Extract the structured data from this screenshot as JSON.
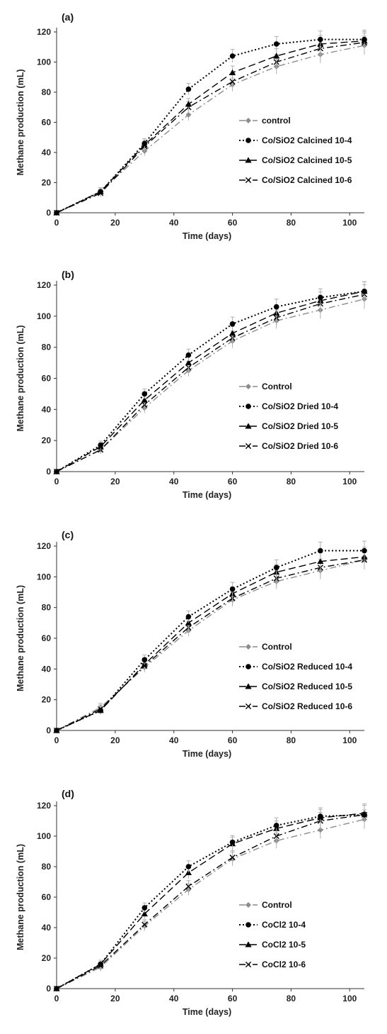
{
  "chart_data": [
    {
      "type": "line",
      "panel_label": "(a)",
      "xlabel": "Time (days)",
      "ylabel": "Methane production (mL)",
      "xlim": [
        0,
        105
      ],
      "ylim": [
        0,
        120
      ],
      "xticks": [
        0,
        20,
        40,
        60,
        80,
        100
      ],
      "yticks": [
        0,
        20,
        40,
        60,
        80,
        100,
        120
      ],
      "x": [
        0,
        15,
        30,
        45,
        60,
        75,
        90,
        105
      ],
      "series": [
        {
          "name": "control",
          "values": [
            0,
            14,
            41,
            65,
            85,
            97,
            105,
            111
          ]
        },
        {
          "name": "Co/SiO2 Calcined  10-4",
          "values": [
            0,
            14,
            46,
            82,
            104,
            112,
            115,
            115
          ]
        },
        {
          "name": "Co/SiO2 Calcined  10-5",
          "values": [
            0,
            14,
            45,
            72,
            93,
            104,
            112,
            114
          ]
        },
        {
          "name": "Co/SiO2 Calcined  10-6",
          "values": [
            0,
            13,
            44,
            70,
            87,
            100,
            109,
            113
          ]
        }
      ]
    },
    {
      "type": "line",
      "panel_label": "(b)",
      "xlabel": "Time (days)",
      "ylabel": "Methane production (mL)",
      "xlim": [
        0,
        105
      ],
      "ylim": [
        0,
        120
      ],
      "xticks": [
        0,
        20,
        40,
        60,
        80,
        100
      ],
      "yticks": [
        0,
        20,
        40,
        60,
        80,
        100,
        120
      ],
      "x": [
        0,
        15,
        30,
        45,
        60,
        75,
        90,
        105
      ],
      "series": [
        {
          "name": "Control",
          "values": [
            0,
            14,
            41,
            65,
            84,
            97,
            104,
            111
          ]
        },
        {
          "name": "Co/SiO2 Dried  10-4",
          "values": [
            0,
            17,
            50,
            75,
            95,
            106,
            112,
            116
          ]
        },
        {
          "name": "Co/SiO2 Dried  10-5",
          "values": [
            0,
            16,
            46,
            70,
            89,
            102,
            110,
            116
          ]
        },
        {
          "name": "Co/SiO2 Dried  10-6",
          "values": [
            0,
            14,
            43,
            67,
            86,
            99,
            108,
            114
          ]
        }
      ]
    },
    {
      "type": "line",
      "panel_label": "(c)",
      "xlabel": "Time (days)",
      "ylabel": "Methane production (mL)",
      "xlim": [
        0,
        105
      ],
      "ylim": [
        0,
        120
      ],
      "xticks": [
        0,
        20,
        40,
        60,
        80,
        100
      ],
      "yticks": [
        0,
        20,
        40,
        60,
        80,
        100,
        120
      ],
      "x": [
        0,
        15,
        30,
        45,
        60,
        75,
        90,
        105
      ],
      "series": [
        {
          "name": "Control",
          "values": [
            0,
            15,
            41,
            65,
            85,
            97,
            104,
            111
          ]
        },
        {
          "name": "Co/SiO2 Reduced 10-4",
          "values": [
            0,
            13,
            46,
            74,
            92,
            106,
            117,
            117
          ]
        },
        {
          "name": "Co/SiO2 Reduced 10-5",
          "values": [
            0,
            13,
            43,
            70,
            89,
            103,
            110,
            113
          ]
        },
        {
          "name": "Co/SiO2 Reduced 10-6",
          "values": [
            0,
            14,
            42,
            67,
            86,
            99,
            106,
            111
          ]
        }
      ]
    },
    {
      "type": "line",
      "panel_label": "(d)",
      "xlabel": "Time (days)",
      "ylabel": "Methane production (mL)",
      "xlim": [
        0,
        105
      ],
      "ylim": [
        0,
        120
      ],
      "xticks": [
        0,
        20,
        40,
        60,
        80,
        100
      ],
      "yticks": [
        0,
        20,
        40,
        60,
        80,
        100,
        120
      ],
      "x": [
        0,
        15,
        30,
        45,
        60,
        75,
        90,
        105
      ],
      "series": [
        {
          "name": "Control",
          "values": [
            0,
            14,
            41,
            65,
            85,
            97,
            104,
            111
          ]
        },
        {
          "name": "CoCl2  10-4",
          "values": [
            0,
            16,
            53,
            80,
            96,
            107,
            113,
            114
          ]
        },
        {
          "name": "CoCl2  10-5",
          "values": [
            0,
            16,
            49,
            76,
            95,
            105,
            112,
            115
          ]
        },
        {
          "name": "CoCl2  10-6",
          "values": [
            0,
            15,
            42,
            67,
            86,
            100,
            110,
            114
          ]
        }
      ]
    }
  ],
  "styles": {
    "series": [
      {
        "color": "#8c8c8c",
        "dash": "9 4 2 4",
        "marker": "diamond"
      },
      {
        "color": "#000000",
        "dash": "2 3",
        "marker": "circle"
      },
      {
        "color": "#000000",
        "dash": "10 5",
        "marker": "triangle"
      },
      {
        "color": "#000000",
        "dash": "9 4 2 4",
        "marker": "cross"
      }
    ],
    "axis_color": "#333333",
    "errorbar_color": "#b0b0b0"
  }
}
